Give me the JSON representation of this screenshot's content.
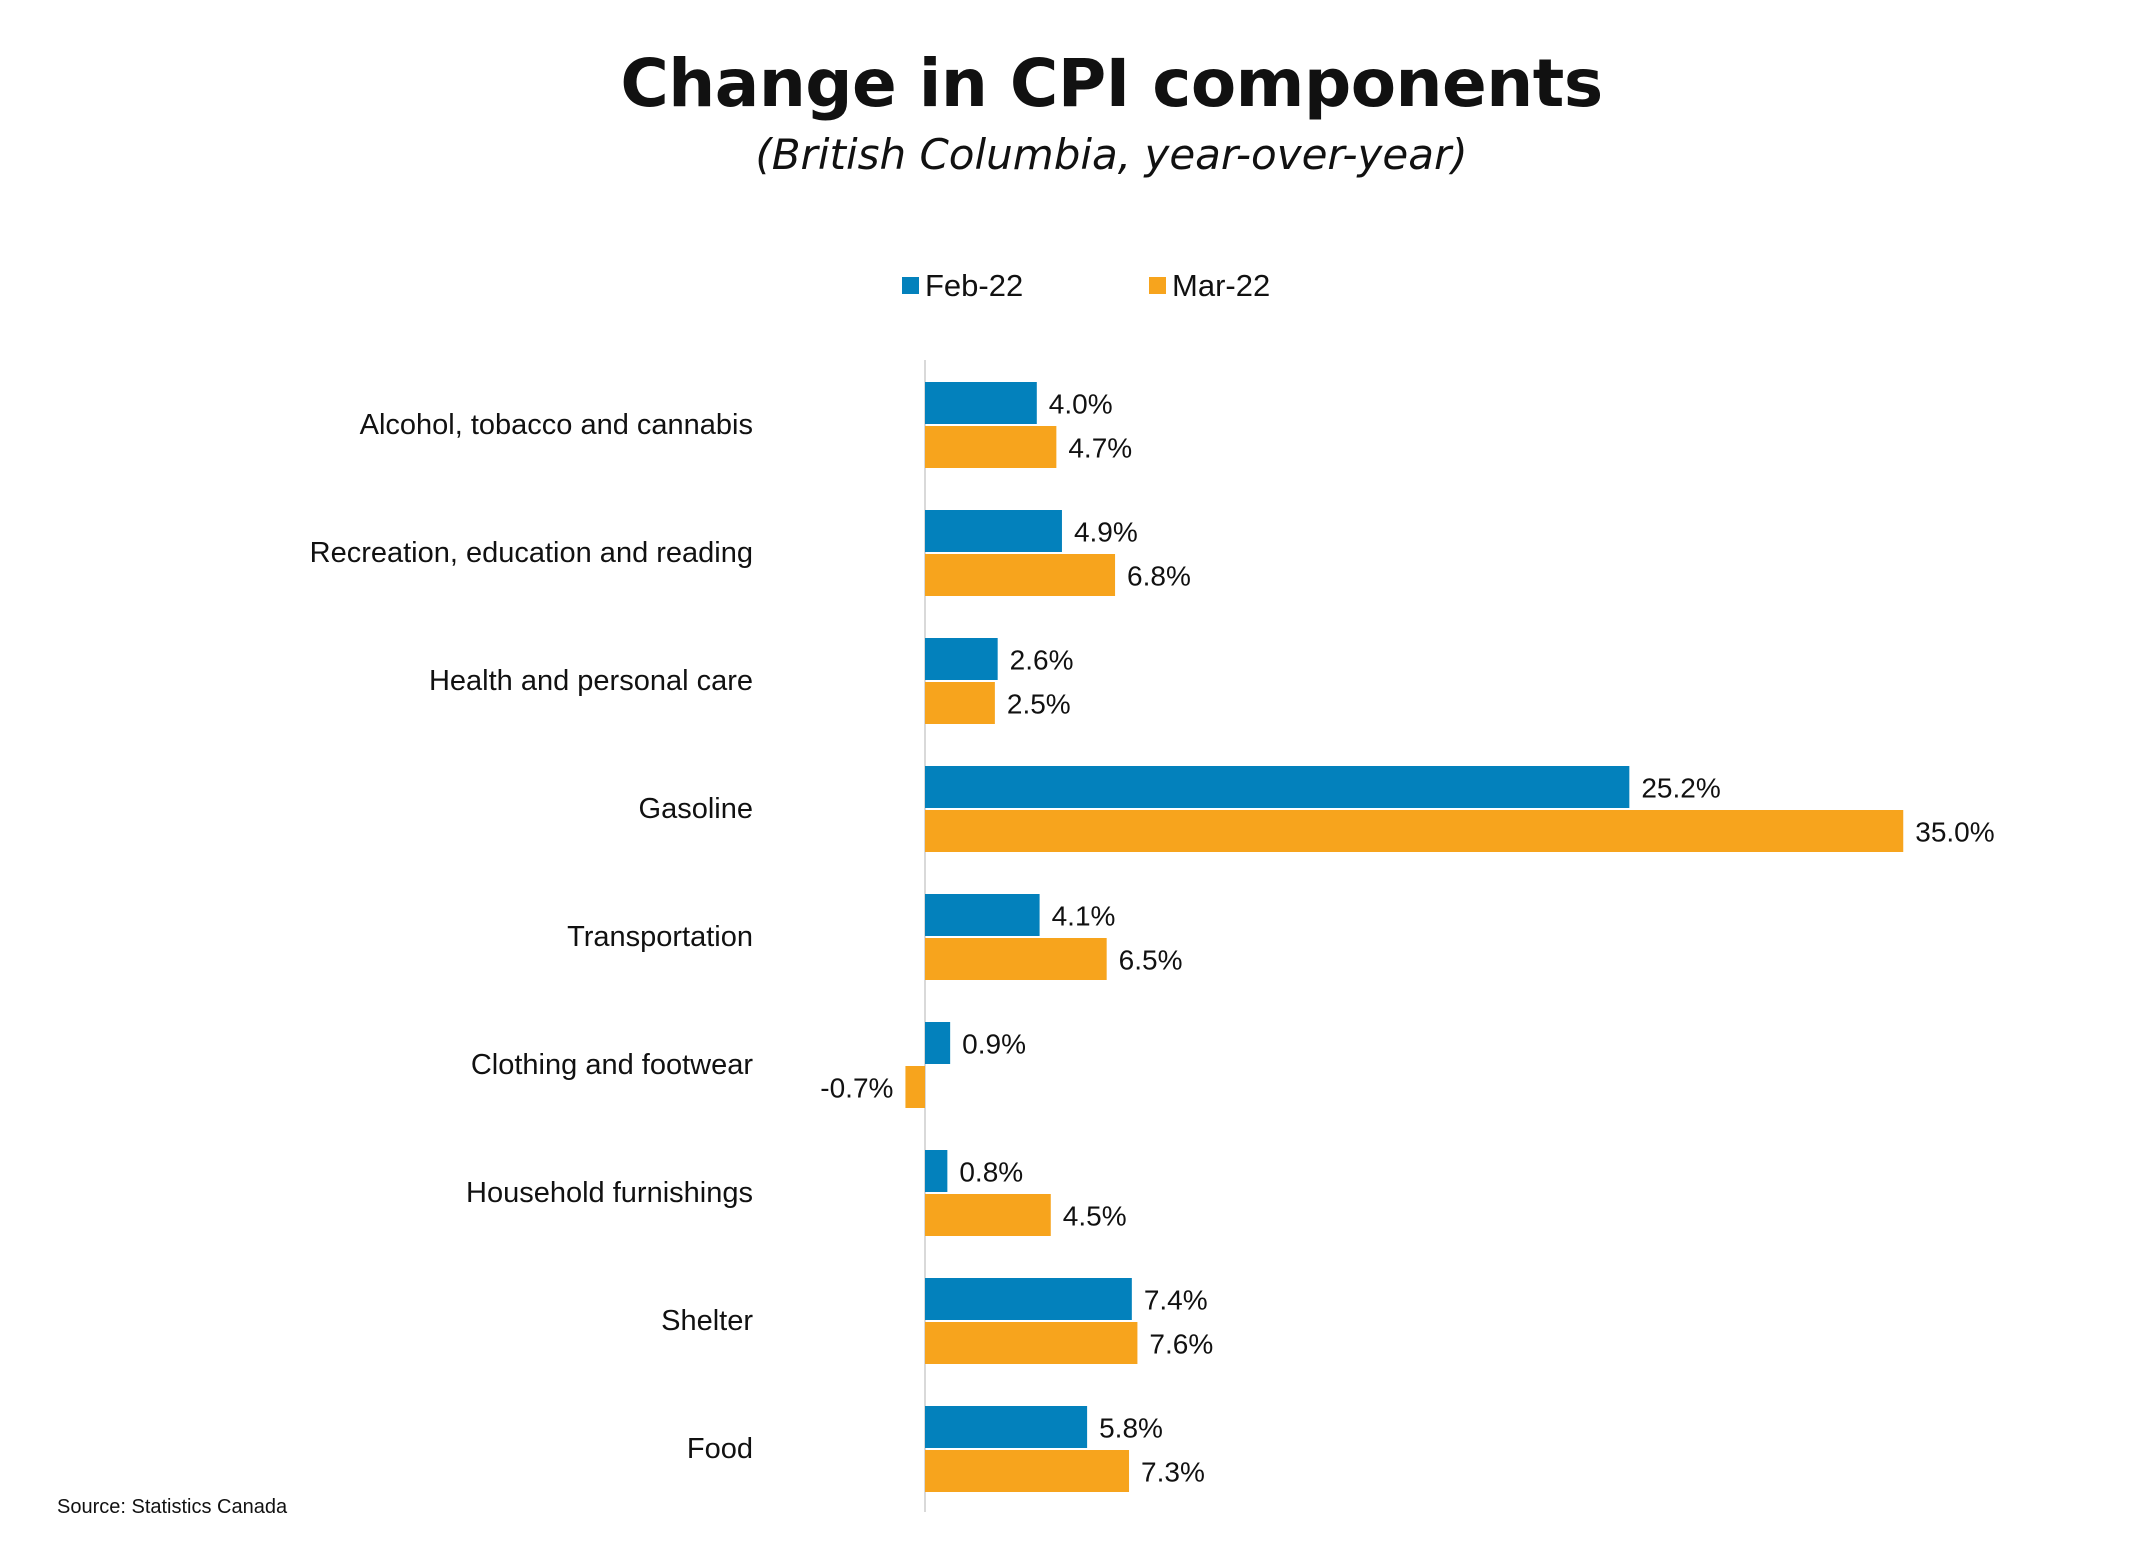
{
  "chart_data": {
    "type": "bar",
    "orientation": "horizontal",
    "title": "Change in CPI components",
    "subtitle": "(British Columbia, year-over-year)",
    "categories": [
      "Alcohol, tobacco and cannabis",
      "Recreation, education and reading",
      "Health and personal care",
      "Gasoline",
      "Transportation",
      "Clothing and footwear",
      "Household furnishings",
      "Shelter",
      "Food"
    ],
    "series": [
      {
        "name": "Feb-22",
        "color": "#0381BC",
        "values": [
          4.0,
          4.9,
          2.6,
          25.2,
          4.1,
          0.9,
          0.8,
          7.4,
          5.8
        ],
        "labels": [
          "4.0%",
          "4.9%",
          "2.6%",
          "25.2%",
          "4.1%",
          "0.9%",
          "0.8%",
          "7.4%",
          "5.8%"
        ]
      },
      {
        "name": "Mar-22",
        "color": "#F7A41D",
        "values": [
          4.7,
          6.8,
          2.5,
          35.0,
          6.5,
          -0.7,
          4.5,
          7.6,
          7.3
        ],
        "labels": [
          "4.7%",
          "6.8%",
          "2.5%",
          "35.0%",
          "6.5%",
          "-0.7%",
          "4.5%",
          "7.6%",
          "7.3%"
        ]
      }
    ],
    "xlim": [
      -0.7,
      35.0
    ],
    "legend_position": "top",
    "grid": false,
    "axis_line_color": "#D9D9D9"
  },
  "source_note": "Source: Statistics Canada"
}
